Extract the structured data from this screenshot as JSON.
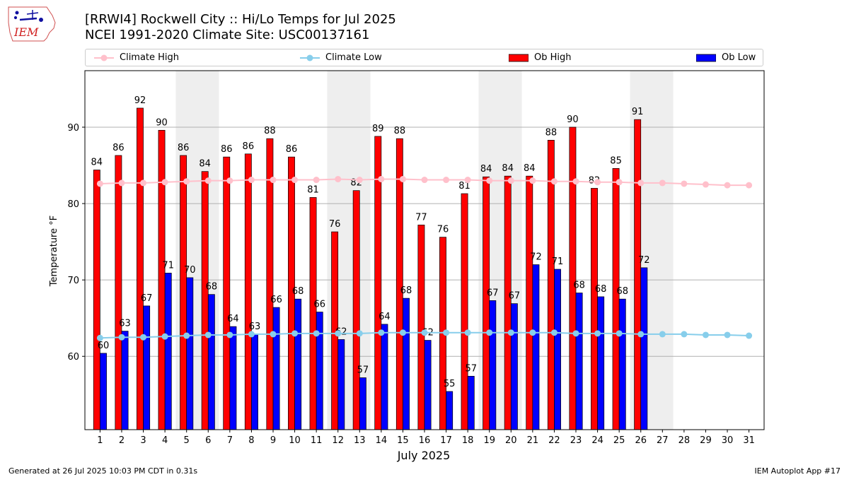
{
  "title_line1": "[RRWI4] Rockwell City :: Hi/Lo Temps for Jul 2025",
  "title_line2": "NCEI 1991-2020 Climate Site: USC00137161",
  "logo_text": "IEM",
  "footer_left": "Generated at 26 Jul 2025 10:03 PM CDT in 0.31s",
  "footer_right": "IEM Autoplot App #17",
  "legend": [
    {
      "label": "Climate High",
      "color": "#ffc0cb",
      "kind": "line"
    },
    {
      "label": "Climate Low",
      "color": "#87ceeb",
      "kind": "line"
    },
    {
      "label": "Ob High",
      "color": "#ff0000",
      "kind": "bar"
    },
    {
      "label": "Ob Low",
      "color": "#0000ff",
      "kind": "bar"
    }
  ],
  "chart_data": {
    "type": "bar",
    "xlabel": "July 2025",
    "ylabel": "Temperature °F",
    "ylim": [
      50.4,
      97.4
    ],
    "yticks": [
      60,
      70,
      80,
      90
    ],
    "grid": true,
    "legend_position": "top",
    "weekend_shading_days": [
      5,
      6,
      12,
      13,
      19,
      20,
      26,
      27
    ],
    "categories": [
      1,
      2,
      3,
      4,
      5,
      6,
      7,
      8,
      9,
      10,
      11,
      12,
      13,
      14,
      15,
      16,
      17,
      18,
      19,
      20,
      21,
      22,
      23,
      24,
      25,
      26,
      27,
      28,
      29,
      30,
      31
    ],
    "series": [
      {
        "name": "Ob High",
        "type": "bar",
        "color": "#ff0000",
        "values": [
          84.4,
          86.3,
          92.5,
          89.6,
          86.3,
          84.2,
          86.1,
          86.5,
          88.5,
          86.1,
          80.8,
          76.3,
          81.7,
          88.8,
          88.5,
          77.2,
          75.6,
          81.3,
          83.5,
          83.6,
          83.6,
          88.3,
          90.0,
          82.0,
          84.6,
          91.0,
          null,
          null,
          null,
          null,
          null
        ],
        "labels": [
          "84",
          "86",
          "92",
          "90",
          "86",
          "84",
          "86",
          "86",
          "88",
          "86",
          "81",
          "76",
          "82",
          "89",
          "88",
          "77",
          "76",
          "81",
          "84",
          "84",
          "84",
          "88",
          "90",
          "82",
          "85",
          "91",
          "",
          "",
          "",
          "",
          ""
        ]
      },
      {
        "name": "Ob Low",
        "type": "bar",
        "color": "#0000ff",
        "values": [
          60.4,
          63.3,
          66.6,
          70.9,
          70.3,
          68.1,
          63.9,
          62.9,
          66.4,
          67.5,
          65.8,
          62.2,
          57.2,
          64.2,
          67.6,
          62.1,
          55.4,
          57.4,
          67.3,
          66.9,
          72.0,
          71.4,
          68.3,
          67.8,
          67.5,
          71.6,
          null,
          null,
          null,
          null,
          null
        ],
        "labels": [
          "60",
          "63",
          "67",
          "71",
          "70",
          "68",
          "64",
          "63",
          "66",
          "68",
          "66",
          "62",
          "57",
          "64",
          "68",
          "62",
          "55",
          "57",
          "67",
          "67",
          "72",
          "71",
          "68",
          "68",
          "68",
          "72",
          "",
          "",
          "",
          "",
          ""
        ]
      },
      {
        "name": "Climate High",
        "type": "line",
        "color": "#ffc0cb",
        "values": [
          82.6,
          82.7,
          82.7,
          82.8,
          82.9,
          83.0,
          83.0,
          83.1,
          83.1,
          83.1,
          83.1,
          83.2,
          83.1,
          83.2,
          83.2,
          83.1,
          83.1,
          83.1,
          83.0,
          83.0,
          83.0,
          82.9,
          82.9,
          82.8,
          82.8,
          82.7,
          82.7,
          82.6,
          82.5,
          82.4,
          82.4
        ]
      },
      {
        "name": "Climate Low",
        "type": "line",
        "color": "#87ceeb",
        "values": [
          62.4,
          62.5,
          62.5,
          62.6,
          62.7,
          62.8,
          62.8,
          62.9,
          62.9,
          63.0,
          63.0,
          63.0,
          63.0,
          63.1,
          63.1,
          63.1,
          63.1,
          63.1,
          63.1,
          63.1,
          63.1,
          63.1,
          63.0,
          63.0,
          63.0,
          62.9,
          62.9,
          62.9,
          62.8,
          62.8,
          62.7
        ]
      }
    ]
  }
}
